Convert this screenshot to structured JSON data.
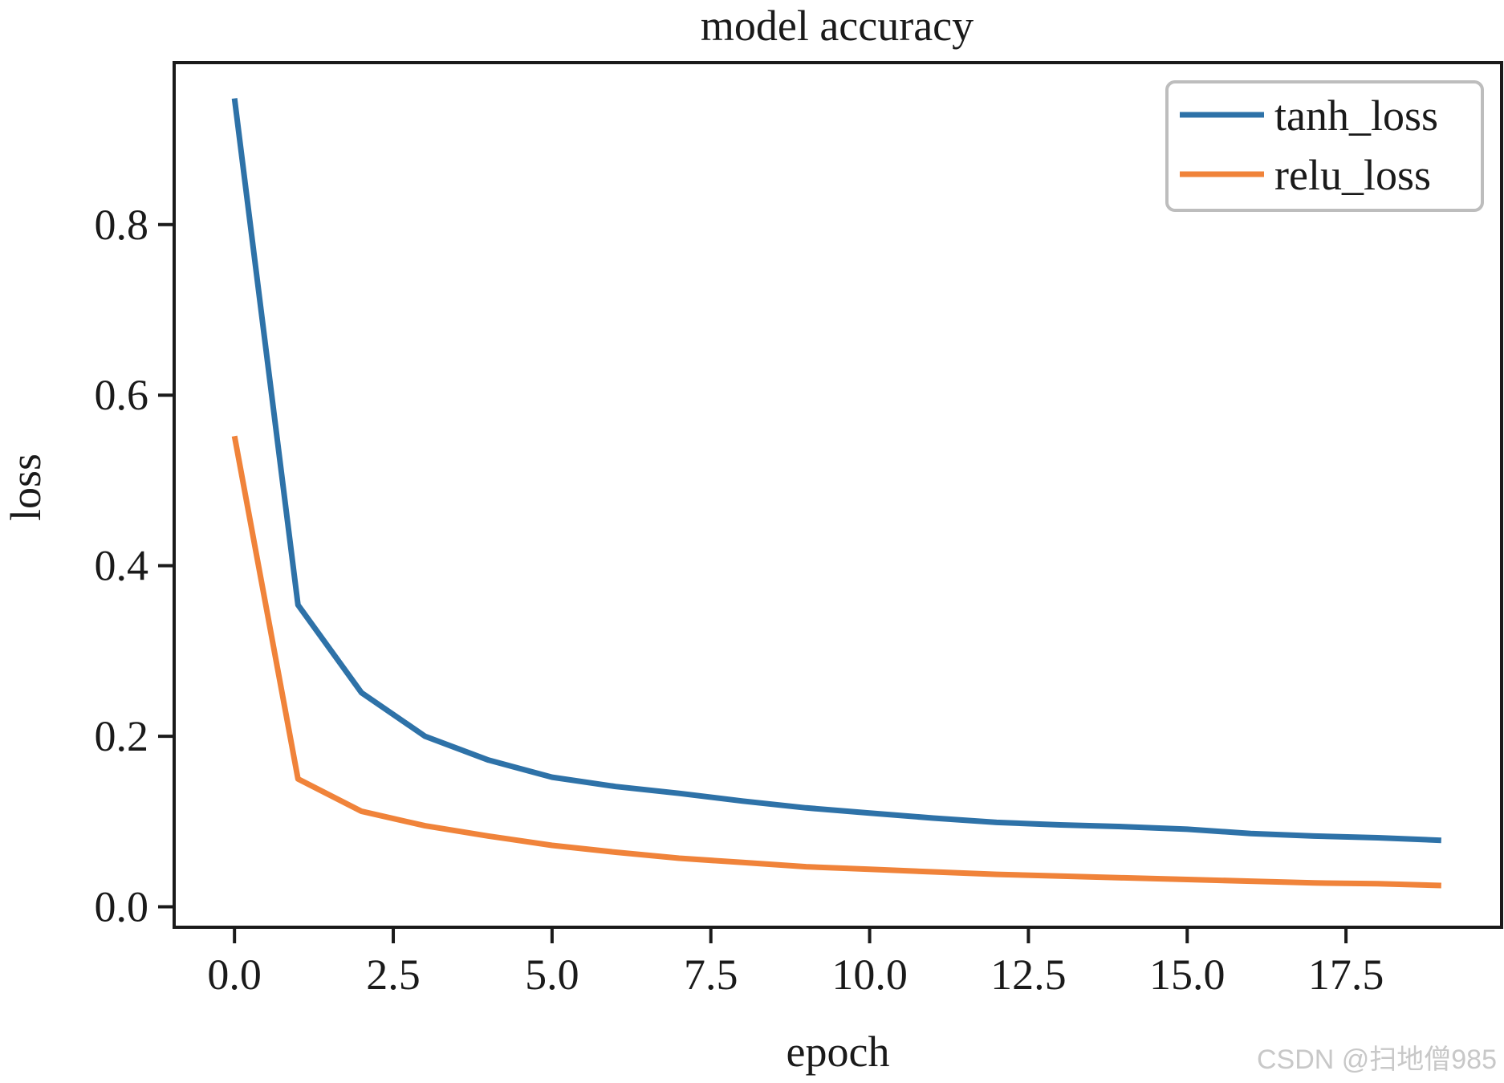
{
  "chart_data": {
    "type": "line",
    "title": "model accuracy",
    "xlabel": "epoch",
    "ylabel": "loss",
    "xlim": [
      -0.95,
      19.95
    ],
    "ylim": [
      -0.024,
      0.99
    ],
    "x_ticks": [
      0.0,
      2.5,
      5.0,
      7.5,
      10.0,
      12.5,
      15.0,
      17.5
    ],
    "x_tick_labels": [
      "0.0",
      "2.5",
      "5.0",
      "7.5",
      "10.0",
      "12.5",
      "15.0",
      "17.5"
    ],
    "y_ticks": [
      0.0,
      0.2,
      0.4,
      0.6,
      0.8
    ],
    "y_tick_labels": [
      "0.0",
      "0.2",
      "0.4",
      "0.6",
      "0.8"
    ],
    "grid": false,
    "legend_position": "top-right",
    "x": [
      0,
      1,
      2,
      3,
      4,
      5,
      6,
      7,
      8,
      9,
      10,
      11,
      12,
      13,
      14,
      15,
      16,
      17,
      18,
      19
    ],
    "series": [
      {
        "name": "tanh_loss",
        "color": "#2e72a8",
        "values": [
          0.948,
          0.354,
          0.251,
          0.2,
          0.172,
          0.152,
          0.141,
          0.133,
          0.124,
          0.116,
          0.11,
          0.104,
          0.099,
          0.096,
          0.094,
          0.091,
          0.086,
          0.083,
          0.081,
          0.078
        ]
      },
      {
        "name": "relu_loss",
        "color": "#f0833a",
        "values": [
          0.552,
          0.15,
          0.112,
          0.095,
          0.083,
          0.072,
          0.064,
          0.057,
          0.052,
          0.047,
          0.044,
          0.041,
          0.038,
          0.036,
          0.034,
          0.032,
          0.03,
          0.028,
          0.027,
          0.025
        ]
      }
    ]
  },
  "watermark": "CSDN @扫地僧985"
}
